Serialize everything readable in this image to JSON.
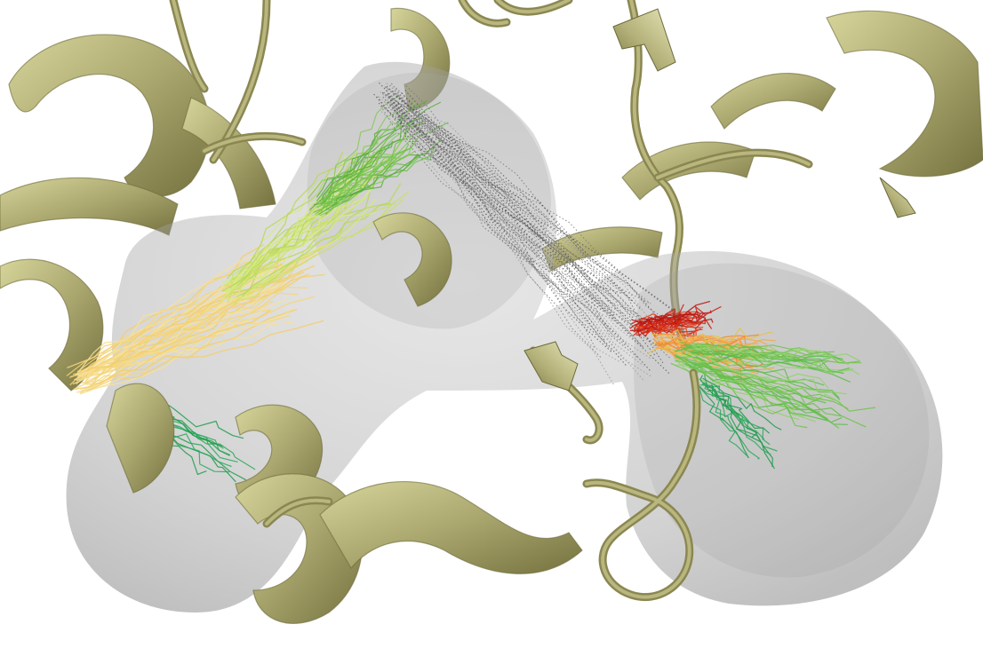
{
  "scene": {
    "description_visible_text": "",
    "colors": {
      "background": "#ffffff",
      "ribbon_light": "#c9c888",
      "ribbon_mid": "#a7a46c",
      "ribbon_dark": "#6f6c3d",
      "surface": "#9a9a9a",
      "trace_red": "#cc1f14",
      "trace_orange": "#f08a3a",
      "trace_yellow": "#f5d77e",
      "trace_lime": "#c9e06a",
      "trace_green": "#6fc24a",
      "trace_darkgreen": "#1f9a4a",
      "trace_gray": "#777777"
    }
  }
}
